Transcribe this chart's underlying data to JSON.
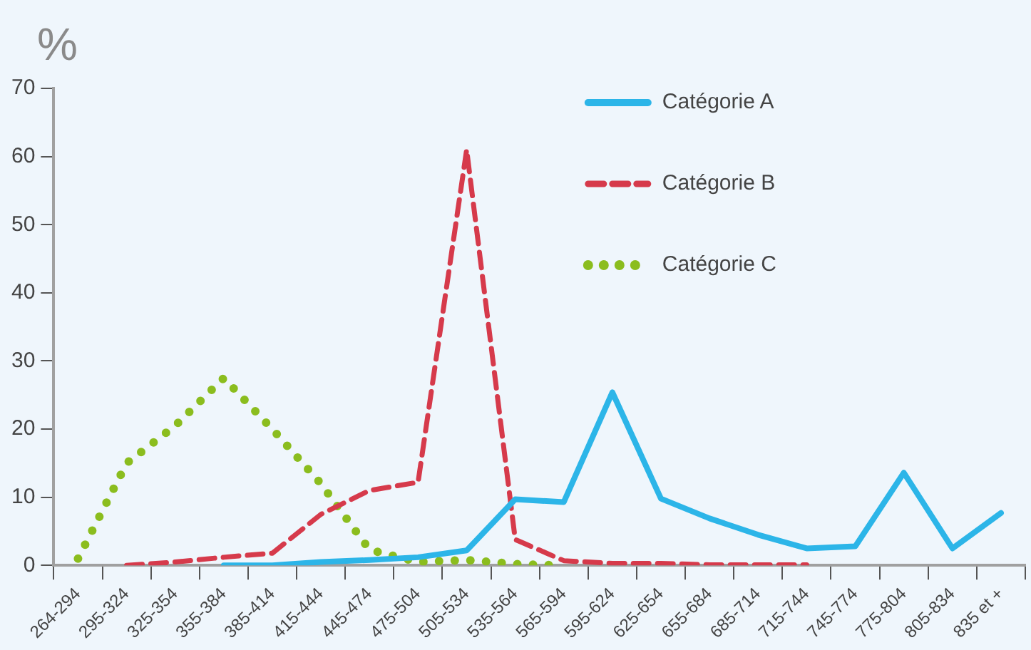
{
  "chart_data": {
    "type": "line",
    "ylabel": "%",
    "categories": [
      "264-294",
      "295-324",
      "325-354",
      "355-384",
      "385-414",
      "415-444",
      "445-474",
      "475-504",
      "505-534",
      "535-564",
      "565-594",
      "595-624",
      "625-654",
      "655-684",
      "685-714",
      "715-744",
      "745-774",
      "775-804",
      "805-834",
      "835 et +"
    ],
    "series": [
      {
        "name": "Catégorie A",
        "color": "#2cb5e8",
        "line_style": "solid",
        "values": [
          null,
          null,
          null,
          0,
          0,
          0.5,
          0.8,
          1.2,
          2.2,
          9.7,
          9.3,
          25.4,
          9.8,
          6.9,
          4.5,
          2.5,
          2.8,
          13.6,
          2.5,
          7.7
        ]
      },
      {
        "name": "Catégorie B",
        "color": "#d63a4b",
        "line_style": "dashed",
        "values": [
          null,
          0,
          0.5,
          1.2,
          1.8,
          7.5,
          11,
          12.2,
          61,
          3.8,
          0.7,
          0.3,
          0.3,
          0.1,
          0.1,
          0.1,
          null,
          null,
          null,
          null
        ]
      },
      {
        "name": "Catégorie C",
        "color": "#8bbd1e",
        "line_style": "dotted",
        "values": [
          1,
          15,
          20.5,
          27.5,
          20,
          12,
          2.3,
          0.5,
          0.8,
          0.2,
          0,
          null,
          null,
          null,
          null,
          null,
          null,
          null,
          null,
          null
        ]
      }
    ],
    "ylim": [
      0,
      70
    ],
    "yticks": [
      0,
      10,
      20,
      30,
      40,
      50,
      60,
      70
    ],
    "grid": false,
    "legend": "top right",
    "marker": "none"
  }
}
